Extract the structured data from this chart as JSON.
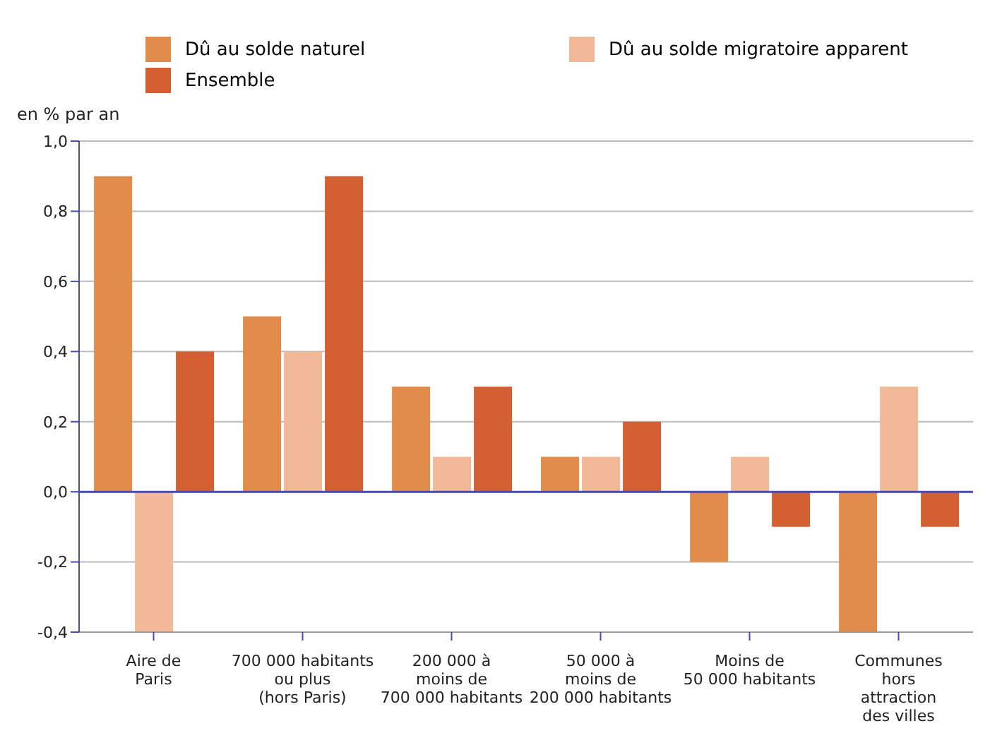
{
  "chart_data": {
    "type": "bar",
    "ylabel": "en % par an",
    "categories": [
      "Aire de\nParis",
      "700 000 habitants\nou plus\n(hors Paris)",
      "200 000 à\nmoins de\n700 000 habitants",
      "50 000 à\nmoins de\n200 000 habitants",
      "Moins de\n50 000 habitants",
      "Communes\nhors\nattraction\ndes villes"
    ],
    "series": [
      {
        "name": "Dû au solde naturel",
        "color": "#e28c4c",
        "values": [
          0.9,
          0.5,
          0.3,
          0.1,
          -0.2,
          -0.4
        ]
      },
      {
        "name": "Dû au solde migratoire apparent",
        "color": "#f1b998",
        "values": [
          -0.4,
          0.4,
          0.1,
          0.1,
          0.1,
          0.3
        ]
      },
      {
        "name": "Ensemble",
        "color": "#d45f33",
        "values": [
          0.4,
          0.9,
          0.3,
          0.2,
          -0.1,
          -0.1
        ]
      }
    ],
    "ylim": [
      -0.4,
      1.0
    ],
    "yticks": [
      {
        "value": -0.4,
        "label": "-0,4"
      },
      {
        "value": -0.2,
        "label": "-0,2"
      },
      {
        "value": 0,
        "label": "0,0"
      },
      {
        "value": 0.2,
        "label": "0,2"
      },
      {
        "value": 0.4,
        "label": "0,4"
      },
      {
        "value": 0.6,
        "label": "0,6"
      },
      {
        "value": 0.8,
        "label": "0,8"
      },
      {
        "value": 1.0,
        "label": "1,0"
      }
    ],
    "grid": "y",
    "legend": "top",
    "ref_lines": [
      {
        "axis": "y",
        "value": 0,
        "label": null,
        "color": "#4a4ab0"
      }
    ]
  }
}
